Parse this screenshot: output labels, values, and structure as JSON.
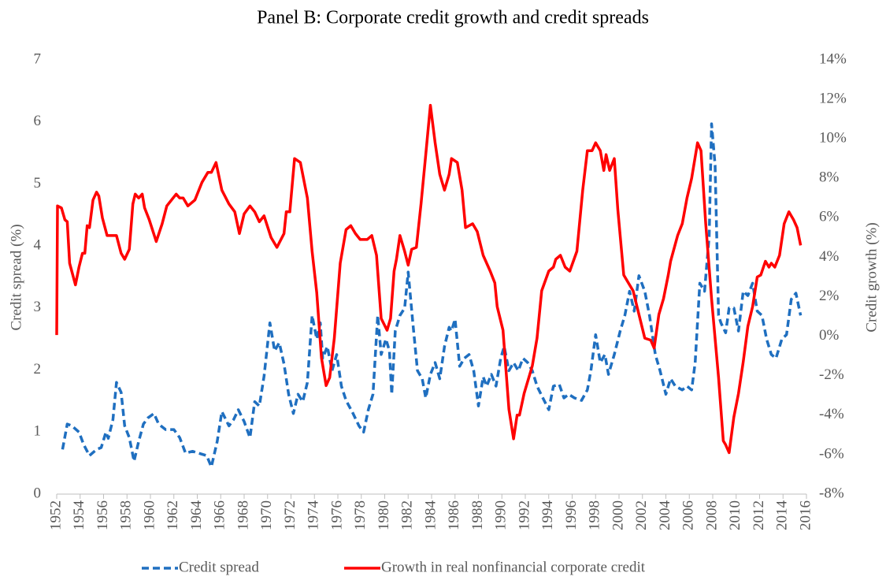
{
  "chart_data": {
    "type": "line",
    "title": "Panel B: Corporate credit growth and credit spreads",
    "y_label": "Credit spread (%)",
    "y2_label": "Credit growth (%)",
    "xlim": [
      1952,
      2016
    ],
    "xticks": [
      1952,
      1954,
      1956,
      1958,
      1960,
      1962,
      1964,
      1966,
      1968,
      1970,
      1972,
      1974,
      1976,
      1978,
      1980,
      1982,
      1984,
      1986,
      1988,
      1990,
      1992,
      1994,
      1996,
      1998,
      2000,
      2002,
      2004,
      2006,
      2008,
      2010,
      2012,
      2014,
      2016
    ],
    "ylim": [
      0,
      7
    ],
    "yticks": [
      0,
      1,
      2,
      3,
      4,
      5,
      6,
      7
    ],
    "y2lim": [
      -8,
      14
    ],
    "y2ticks": [
      {
        "value": -8,
        "label": "-8%"
      },
      {
        "value": -6,
        "label": "-6%"
      },
      {
        "value": -4,
        "label": "-4%"
      },
      {
        "value": -2,
        "label": "-2%"
      },
      {
        "value": 0,
        "label": "0%"
      },
      {
        "value": 2,
        "label": "2%"
      },
      {
        "value": 4,
        "label": "4%"
      },
      {
        "value": 6,
        "label": "6%"
      },
      {
        "value": 8,
        "label": "8%"
      },
      {
        "value": 10,
        "label": "10%"
      },
      {
        "value": 12,
        "label": "12%"
      },
      {
        "value": 14,
        "label": "14%"
      }
    ],
    "legend": "bottom",
    "series": [
      {
        "name": "Credit spread",
        "color": "#1f6fc0",
        "dashed": true,
        "axis": "y",
        "x": [
          1952.5,
          1952.9,
          1953.3,
          1953.9,
          1954.3,
          1954.8,
          1955.4,
          1955.8,
          1956.2,
          1956.4,
          1956.8,
          1957.1,
          1957.5,
          1957.8,
          1958.2,
          1958.6,
          1959.0,
          1959.4,
          1959.8,
          1960.3,
          1960.7,
          1961.3,
          1962.0,
          1962.5,
          1963.0,
          1963.6,
          1964.1,
          1964.8,
          1965.2,
          1965.7,
          1966.1,
          1966.7,
          1967.1,
          1967.5,
          1968.0,
          1968.5,
          1968.9,
          1969.3,
          1969.7,
          1970.2,
          1970.6,
          1971.0,
          1971.4,
          1971.8,
          1972.2,
          1972.6,
          1973.0,
          1973.4,
          1973.8,
          1974.2,
          1974.5,
          1974.7,
          1975.1,
          1975.5,
          1975.9,
          1976.3,
          1976.7,
          1977.3,
          1977.8,
          1978.2,
          1978.6,
          1979.0,
          1979.4,
          1979.7,
          1980.1,
          1980.4,
          1980.6,
          1980.9,
          1981.3,
          1981.7,
          1982.0,
          1982.4,
          1982.8,
          1983.2,
          1983.5,
          1983.9,
          1984.3,
          1984.7,
          1985.1,
          1985.5,
          1985.7,
          1986.0,
          1986.4,
          1986.8,
          1987.2,
          1987.6,
          1988.0,
          1988.4,
          1988.7,
          1989.1,
          1989.5,
          1989.9,
          1990.2,
          1990.6,
          1991.0,
          1991.4,
          1991.8,
          1992.2,
          1992.6,
          1993.0,
          1993.5,
          1994.0,
          1994.4,
          1994.9,
          1995.3,
          1995.7,
          1996.2,
          1996.8,
          1997.3,
          1997.6,
          1998.0,
          1998.4,
          1998.8,
          1999.1,
          1999.6,
          2000.1,
          2000.5,
          2000.9,
          2001.3,
          2001.7,
          2002.2,
          2002.6,
          2003.1,
          2003.5,
          2004.0,
          2004.4,
          2004.8,
          2005.4,
          2005.8,
          2006.2,
          2006.5,
          2006.9,
          2007.3,
          2007.7,
          2007.9,
          2008.2,
          2008.5,
          2008.7,
          2009.1,
          2009.4,
          2009.8,
          2010.2,
          2010.6,
          2011.0,
          2011.4,
          2011.8,
          2012.2,
          2012.6,
          2013.0,
          2013.4,
          2013.9,
          2014.3,
          2014.7,
          2015.1,
          2015.5
        ],
        "values": [
          0.72,
          1.13,
          1.1,
          1.0,
          0.8,
          0.62,
          0.72,
          0.75,
          1.0,
          0.9,
          1.2,
          1.8,
          1.64,
          1.1,
          0.91,
          0.53,
          0.85,
          1.13,
          1.23,
          1.3,
          1.13,
          1.04,
          1.04,
          0.91,
          0.66,
          0.69,
          0.66,
          0.62,
          0.44,
          0.85,
          1.33,
          1.1,
          1.2,
          1.36,
          1.17,
          0.91,
          1.49,
          1.42,
          1.9,
          2.76,
          2.31,
          2.44,
          2.1,
          1.61,
          1.3,
          1.61,
          1.49,
          1.8,
          2.88,
          2.5,
          2.76,
          2.19,
          2.38,
          1.99,
          2.25,
          1.74,
          1.51,
          1.3,
          1.1,
          1.0,
          1.36,
          1.61,
          2.88,
          2.25,
          2.5,
          2.31,
          1.61,
          2.63,
          2.88,
          3.0,
          3.58,
          2.76,
          1.99,
          1.86,
          1.55,
          1.93,
          2.12,
          1.86,
          2.38,
          2.69,
          2.63,
          2.82,
          2.06,
          2.19,
          2.25,
          1.99,
          1.42,
          1.89,
          1.74,
          1.93,
          1.74,
          2.19,
          2.38,
          1.99,
          2.12,
          1.99,
          2.19,
          2.12,
          1.99,
          1.74,
          1.55,
          1.36,
          1.74,
          1.77,
          1.55,
          1.61,
          1.55,
          1.51,
          1.68,
          1.99,
          2.57,
          2.12,
          2.25,
          1.93,
          2.25,
          2.63,
          2.88,
          3.27,
          2.95,
          3.52,
          3.27,
          2.88,
          2.25,
          1.99,
          1.61,
          1.86,
          1.74,
          1.68,
          1.74,
          1.68,
          2.12,
          3.4,
          3.27,
          4.16,
          5.97,
          5.3,
          2.88,
          2.76,
          2.6,
          3.0,
          3.0,
          2.63,
          3.27,
          3.2,
          3.4,
          2.95,
          2.88,
          2.5,
          2.25,
          2.19,
          2.5,
          2.57,
          3.14,
          3.24,
          2.88
        ]
      },
      {
        "name": "Growth in real nonfinancial corporate credit",
        "color": "#ff0000",
        "dashed": false,
        "axis": "y2",
        "x": [
          1952.0,
          1952.07,
          1952.4,
          1952.7,
          1952.9,
          1953.1,
          1953.6,
          1953.9,
          1954.2,
          1954.4,
          1954.6,
          1954.8,
          1955.1,
          1955.4,
          1955.6,
          1955.9,
          1956.3,
          1956.7,
          1957.1,
          1957.5,
          1957.8,
          1958.2,
          1958.5,
          1958.7,
          1959.0,
          1959.3,
          1959.5,
          1959.9,
          1960.5,
          1961.0,
          1961.4,
          1962.2,
          1962.5,
          1962.8,
          1963.2,
          1963.8,
          1964.4,
          1964.9,
          1965.2,
          1965.6,
          1966.1,
          1966.7,
          1967.2,
          1967.6,
          1968.0,
          1968.5,
          1968.9,
          1969.3,
          1969.7,
          1970.3,
          1970.8,
          1971.4,
          1971.6,
          1971.9,
          1972.3,
          1972.8,
          1973.4,
          1973.8,
          1974.2,
          1974.6,
          1975.0,
          1975.3,
          1975.7,
          1976.2,
          1976.7,
          1977.1,
          1977.5,
          1977.9,
          1978.5,
          1978.9,
          1979.3,
          1979.7,
          1980.2,
          1980.5,
          1980.8,
          1981.0,
          1981.3,
          1981.7,
          1982.0,
          1982.3,
          1982.7,
          1983.1,
          1983.5,
          1983.9,
          1984.3,
          1984.7,
          1985.1,
          1985.5,
          1985.7,
          1986.2,
          1986.6,
          1986.9,
          1987.5,
          1987.9,
          1988.4,
          1989.0,
          1989.4,
          1989.6,
          1990.1,
          1990.6,
          1991.0,
          1991.3,
          1991.5,
          1991.9,
          1992.6,
          1993.0,
          1993.4,
          1994.0,
          1994.4,
          1994.6,
          1995.0,
          1995.4,
          1995.8,
          1996.4,
          1996.9,
          1997.3,
          1997.7,
          1998.0,
          1998.4,
          1998.7,
          1998.9,
          1999.2,
          1999.6,
          1999.9,
          2000.4,
          2000.8,
          2001.2,
          2001.7,
          2002.2,
          2002.7,
          2003.0,
          2003.4,
          2003.8,
          2004.2,
          2004.4,
          2005.0,
          2005.4,
          2005.8,
          2006.2,
          2006.7,
          2007.0,
          2007.4,
          2007.9,
          2008.5,
          2008.9,
          2009.1,
          2009.4,
          2009.8,
          2010.2,
          2010.6,
          2011.0,
          2011.4,
          2011.8,
          2012.1,
          2012.5,
          2012.8,
          2013.0,
          2013.3,
          2013.7,
          2014.1,
          2014.5,
          2014.9,
          2015.2,
          2015.5
        ],
        "values": [
          0.06,
          6.6,
          6.5,
          5.9,
          5.8,
          3.7,
          2.6,
          3.5,
          4.2,
          4.2,
          5.6,
          5.5,
          6.9,
          7.3,
          7.1,
          6.0,
          5.1,
          5.1,
          5.1,
          4.2,
          3.9,
          4.4,
          6.7,
          7.2,
          7.0,
          7.2,
          6.5,
          5.9,
          4.8,
          5.7,
          6.6,
          7.2,
          7.0,
          7.0,
          6.6,
          6.9,
          7.8,
          8.3,
          8.3,
          8.8,
          7.4,
          6.7,
          6.3,
          5.2,
          6.2,
          6.6,
          6.3,
          5.8,
          6.1,
          5.0,
          4.5,
          5.2,
          6.3,
          6.3,
          9.0,
          8.8,
          7.0,
          4.3,
          2.2,
          -1.1,
          -2.5,
          -2.1,
          -0.1,
          3.7,
          5.4,
          5.6,
          5.2,
          4.9,
          4.9,
          5.1,
          4.1,
          0.9,
          0.3,
          0.9,
          3.3,
          3.9,
          5.1,
          4.3,
          3.6,
          4.4,
          4.5,
          6.7,
          9.2,
          11.7,
          9.8,
          8.2,
          7.4,
          8.2,
          9.0,
          8.8,
          7.4,
          5.5,
          5.7,
          5.3,
          4.1,
          3.3,
          2.7,
          1.5,
          0.3,
          -3.7,
          -5.2,
          -4.0,
          -4.0,
          -2.9,
          -1.5,
          -0.1,
          2.3,
          3.3,
          3.5,
          3.9,
          4.1,
          3.5,
          3.3,
          4.3,
          7.4,
          9.4,
          9.4,
          9.8,
          9.4,
          8.4,
          9.2,
          8.4,
          9.0,
          6.4,
          3.1,
          2.7,
          2.3,
          1.1,
          -0.1,
          -0.2,
          -0.6,
          1.1,
          1.9,
          3.1,
          3.8,
          5.1,
          5.7,
          7.0,
          8.0,
          9.8,
          9.4,
          5.7,
          1.9,
          -2.1,
          -5.3,
          -5.5,
          -5.9,
          -4.1,
          -2.9,
          -1.3,
          0.5,
          1.5,
          3.0,
          3.1,
          3.8,
          3.5,
          3.7,
          3.5,
          4.1,
          5.7,
          6.3,
          5.9,
          5.5,
          4.6
        ]
      }
    ]
  }
}
